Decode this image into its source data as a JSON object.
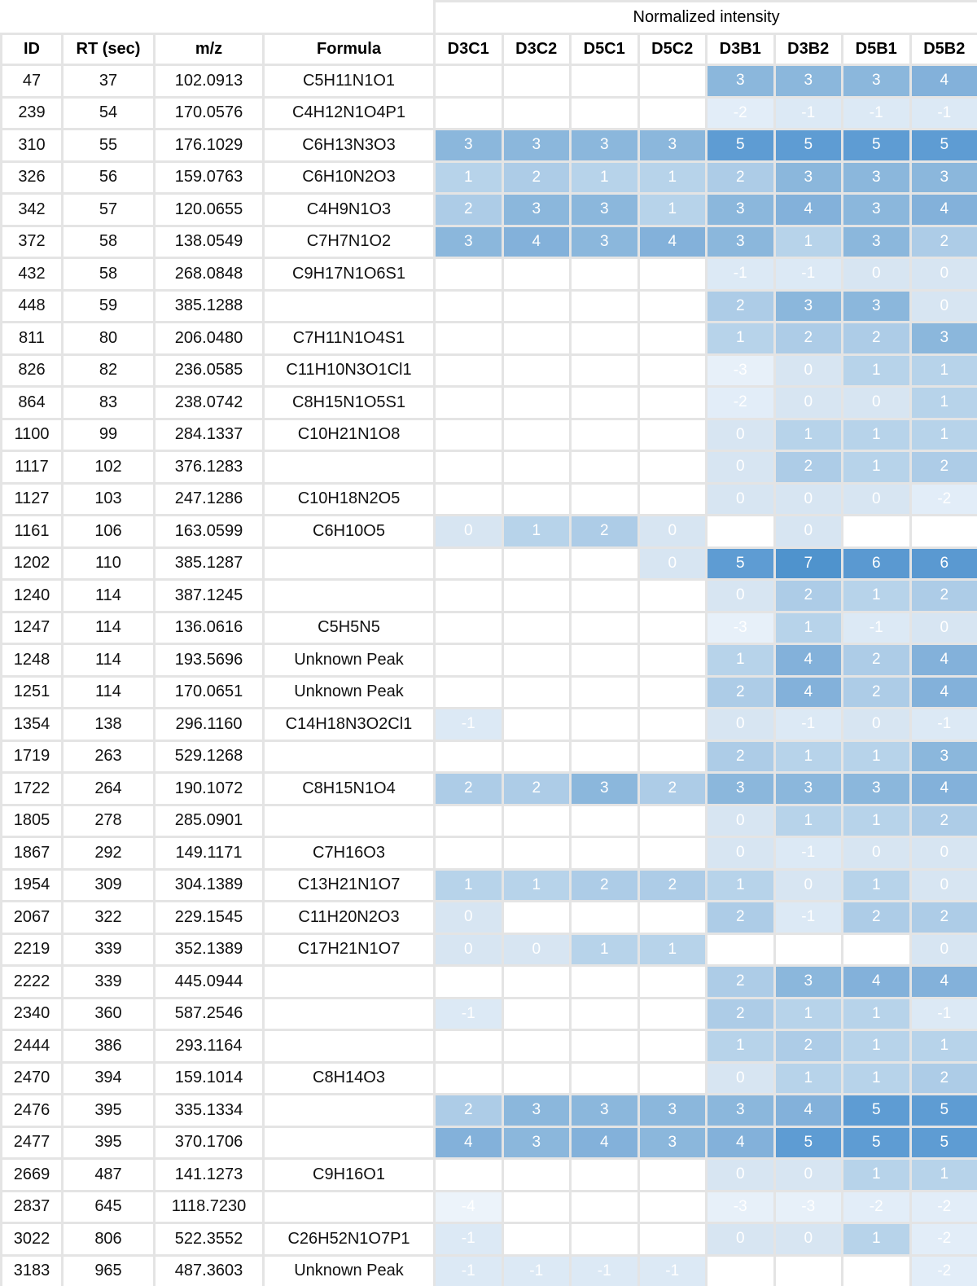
{
  "chart_data": {
    "type": "heatmap",
    "title": "Normalized intensity",
    "row_columns": [
      "ID",
      "RT (sec)",
      "m/z",
      "Formula"
    ],
    "sample_columns": [
      "D3C1",
      "D3C2",
      "D5C1",
      "D5C2",
      "D3B1",
      "D3B2",
      "D5B1",
      "D5B2"
    ],
    "value_range": [
      -4,
      7
    ],
    "value_colors": {
      "-4": "#ecf3fa",
      "-3": "#e7f0f9",
      "-2": "#e2edf8",
      "-1": "#dce9f5",
      "0": "#d7e5f2",
      "1": "#b7d3ea",
      "2": "#adcce7",
      "3": "#8bb7dc",
      "4": "#83b1da",
      "5": "#5e9cd3",
      "6": "#5a99d1",
      "7": "#4f93cd"
    },
    "rows": [
      {
        "id": "47",
        "rt": "37",
        "mz": "102.0913",
        "formula": "C5H11N1O1",
        "values": [
          null,
          null,
          null,
          null,
          3,
          3,
          3,
          4
        ]
      },
      {
        "id": "239",
        "rt": "54",
        "mz": "170.0576",
        "formula": "C4H12N1O4P1",
        "values": [
          null,
          null,
          null,
          null,
          -2,
          -1,
          -1,
          -1
        ]
      },
      {
        "id": "310",
        "rt": "55",
        "mz": "176.1029",
        "formula": "C6H13N3O3",
        "values": [
          3,
          3,
          3,
          3,
          5,
          5,
          5,
          5
        ]
      },
      {
        "id": "326",
        "rt": "56",
        "mz": "159.0763",
        "formula": "C6H10N2O3",
        "values": [
          1,
          2,
          1,
          1,
          2,
          3,
          3,
          3
        ]
      },
      {
        "id": "342",
        "rt": "57",
        "mz": "120.0655",
        "formula": "C4H9N1O3",
        "values": [
          2,
          3,
          3,
          1,
          3,
          4,
          3,
          4
        ]
      },
      {
        "id": "372",
        "rt": "58",
        "mz": "138.0549",
        "formula": "C7H7N1O2",
        "values": [
          3,
          4,
          3,
          4,
          3,
          1,
          3,
          2
        ]
      },
      {
        "id": "432",
        "rt": "58",
        "mz": "268.0848",
        "formula": "C9H17N1O6S1",
        "values": [
          null,
          null,
          null,
          null,
          -1,
          -1,
          0,
          0
        ]
      },
      {
        "id": "448",
        "rt": "59",
        "mz": "385.1288",
        "formula": "",
        "values": [
          null,
          null,
          null,
          null,
          2,
          3,
          3,
          0
        ]
      },
      {
        "id": "811",
        "rt": "80",
        "mz": "206.0480",
        "formula": "C7H11N1O4S1",
        "values": [
          null,
          null,
          null,
          null,
          1,
          2,
          2,
          3
        ]
      },
      {
        "id": "826",
        "rt": "82",
        "mz": "236.0585",
        "formula": "C11H10N3O1Cl1",
        "values": [
          null,
          null,
          null,
          null,
          -3,
          0,
          1,
          1
        ]
      },
      {
        "id": "864",
        "rt": "83",
        "mz": "238.0742",
        "formula": "C8H15N1O5S1",
        "values": [
          null,
          null,
          null,
          null,
          -2,
          0,
          0,
          1
        ]
      },
      {
        "id": "1100",
        "rt": "99",
        "mz": "284.1337",
        "formula": "C10H21N1O8",
        "values": [
          null,
          null,
          null,
          null,
          0,
          1,
          1,
          1
        ]
      },
      {
        "id": "1117",
        "rt": "102",
        "mz": "376.1283",
        "formula": "",
        "values": [
          null,
          null,
          null,
          null,
          0,
          2,
          1,
          2
        ]
      },
      {
        "id": "1127",
        "rt": "103",
        "mz": "247.1286",
        "formula": "C10H18N2O5",
        "values": [
          null,
          null,
          null,
          null,
          0,
          0,
          0,
          -2
        ]
      },
      {
        "id": "1161",
        "rt": "106",
        "mz": "163.0599",
        "formula": "C6H10O5",
        "values": [
          0,
          1,
          2,
          0,
          null,
          0,
          null,
          null
        ]
      },
      {
        "id": "1202",
        "rt": "110",
        "mz": "385.1287",
        "formula": "",
        "values": [
          null,
          null,
          null,
          0,
          5,
          7,
          6,
          6
        ]
      },
      {
        "id": "1240",
        "rt": "114",
        "mz": "387.1245",
        "formula": "",
        "values": [
          null,
          null,
          null,
          null,
          0,
          2,
          1,
          2
        ]
      },
      {
        "id": "1247",
        "rt": "114",
        "mz": "136.0616",
        "formula": "C5H5N5",
        "values": [
          null,
          null,
          null,
          null,
          -3,
          1,
          -1,
          0
        ]
      },
      {
        "id": "1248",
        "rt": "114",
        "mz": "193.5696",
        "formula": "Unknown Peak",
        "values": [
          null,
          null,
          null,
          null,
          1,
          4,
          2,
          4
        ]
      },
      {
        "id": "1251",
        "rt": "114",
        "mz": "170.0651",
        "formula": "Unknown Peak",
        "values": [
          null,
          null,
          null,
          null,
          2,
          4,
          2,
          4
        ]
      },
      {
        "id": "1354",
        "rt": "138",
        "mz": "296.1160",
        "formula": "C14H18N3O2Cl1",
        "values": [
          -1,
          null,
          null,
          null,
          0,
          -1,
          0,
          -1
        ]
      },
      {
        "id": "1719",
        "rt": "263",
        "mz": "529.1268",
        "formula": "",
        "values": [
          null,
          null,
          null,
          null,
          2,
          1,
          1,
          3
        ]
      },
      {
        "id": "1722",
        "rt": "264",
        "mz": "190.1072",
        "formula": "C8H15N1O4",
        "values": [
          2,
          2,
          3,
          2,
          3,
          3,
          3,
          4
        ]
      },
      {
        "id": "1805",
        "rt": "278",
        "mz": "285.0901",
        "formula": "",
        "values": [
          null,
          null,
          null,
          null,
          0,
          1,
          1,
          2
        ]
      },
      {
        "id": "1867",
        "rt": "292",
        "mz": "149.1171",
        "formula": "C7H16O3",
        "values": [
          null,
          null,
          null,
          null,
          0,
          -1,
          0,
          0
        ]
      },
      {
        "id": "1954",
        "rt": "309",
        "mz": "304.1389",
        "formula": "C13H21N1O7",
        "values": [
          1,
          1,
          2,
          2,
          1,
          0,
          1,
          0
        ]
      },
      {
        "id": "2067",
        "rt": "322",
        "mz": "229.1545",
        "formula": "C11H20N2O3",
        "values": [
          0,
          null,
          null,
          null,
          2,
          -1,
          2,
          2
        ]
      },
      {
        "id": "2219",
        "rt": "339",
        "mz": "352.1389",
        "formula": "C17H21N1O7",
        "values": [
          0,
          0,
          1,
          1,
          null,
          null,
          null,
          0
        ]
      },
      {
        "id": "2222",
        "rt": "339",
        "mz": "445.0944",
        "formula": "",
        "values": [
          null,
          null,
          null,
          null,
          2,
          3,
          4,
          4
        ]
      },
      {
        "id": "2340",
        "rt": "360",
        "mz": "587.2546",
        "formula": "",
        "values": [
          -1,
          null,
          null,
          null,
          2,
          1,
          1,
          -1
        ]
      },
      {
        "id": "2444",
        "rt": "386",
        "mz": "293.1164",
        "formula": "",
        "values": [
          null,
          null,
          null,
          null,
          1,
          2,
          1,
          1
        ]
      },
      {
        "id": "2470",
        "rt": "394",
        "mz": "159.1014",
        "formula": "C8H14O3",
        "values": [
          null,
          null,
          null,
          null,
          0,
          1,
          1,
          2
        ]
      },
      {
        "id": "2476",
        "rt": "395",
        "mz": "335.1334",
        "formula": "",
        "values": [
          2,
          3,
          3,
          3,
          3,
          4,
          5,
          5
        ]
      },
      {
        "id": "2477",
        "rt": "395",
        "mz": "370.1706",
        "formula": "",
        "values": [
          4,
          3,
          4,
          3,
          4,
          5,
          5,
          5
        ]
      },
      {
        "id": "2669",
        "rt": "487",
        "mz": "141.1273",
        "formula": "C9H16O1",
        "values": [
          null,
          null,
          null,
          null,
          0,
          0,
          1,
          1
        ]
      },
      {
        "id": "2837",
        "rt": "645",
        "mz": "1118.7230",
        "formula": "",
        "values": [
          -4,
          null,
          null,
          null,
          -3,
          -3,
          -2,
          -2
        ]
      },
      {
        "id": "3022",
        "rt": "806",
        "mz": "522.3552",
        "formula": "C26H52N1O7P1",
        "values": [
          -1,
          null,
          null,
          null,
          0,
          0,
          1,
          -2
        ]
      },
      {
        "id": "3183",
        "rt": "965",
        "mz": "487.3603",
        "formula": "Unknown Peak",
        "values": [
          -1,
          -1,
          -1,
          -1,
          null,
          null,
          null,
          -2
        ]
      }
    ]
  }
}
